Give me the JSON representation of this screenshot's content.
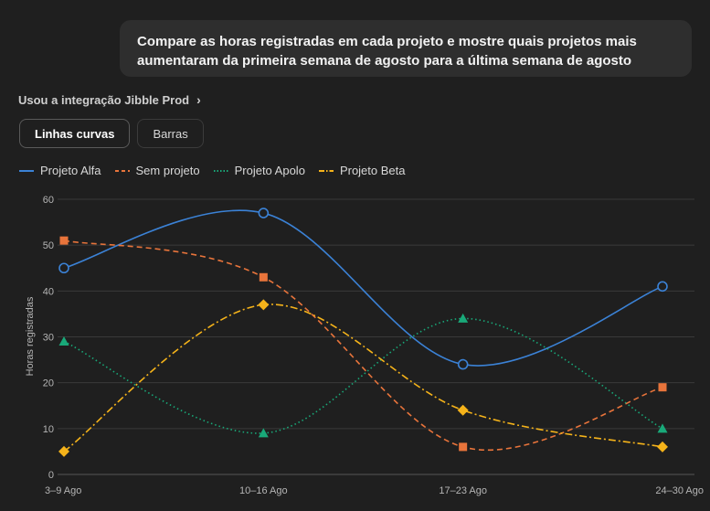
{
  "prompt": {
    "text": "Compare as horas registradas em cada projeto e mostre quais projetos mais aumentaram da primeira semana de agosto para a última semana de agosto"
  },
  "integration": {
    "label": "Usou a integração Jibble Prod"
  },
  "toggles": {
    "curves": "Linhas curvas",
    "bars": "Barras",
    "active": "curves"
  },
  "chart_data": {
    "type": "line",
    "title": "",
    "xlabel": "",
    "ylabel": "Horas registradas",
    "categories": [
      "3–9 Ago",
      "10–16 Ago",
      "17–23 Ago",
      "24–30 Ago"
    ],
    "ylim": [
      0,
      60
    ],
    "yticks": [
      0,
      10,
      20,
      30,
      40,
      50,
      60
    ],
    "grid": true,
    "legend": "top-left",
    "series": [
      {
        "name": "Projeto Alfa",
        "values": [
          45,
          57,
          24,
          41
        ],
        "color": "#3b82d6",
        "dash": "solid",
        "marker": "circle"
      },
      {
        "name": "Sem projeto",
        "values": [
          51,
          43,
          6,
          19
        ],
        "color": "#e8743b",
        "dash": "dashed",
        "marker": "square"
      },
      {
        "name": "Projeto Apolo",
        "values": [
          29,
          9,
          34,
          10
        ],
        "color": "#19a979",
        "dash": "dotted",
        "marker": "triangle"
      },
      {
        "name": "Projeto Beta",
        "values": [
          5,
          37,
          14,
          6
        ],
        "color": "#f5b31a",
        "dash": "dashdot",
        "marker": "diamond"
      }
    ]
  }
}
